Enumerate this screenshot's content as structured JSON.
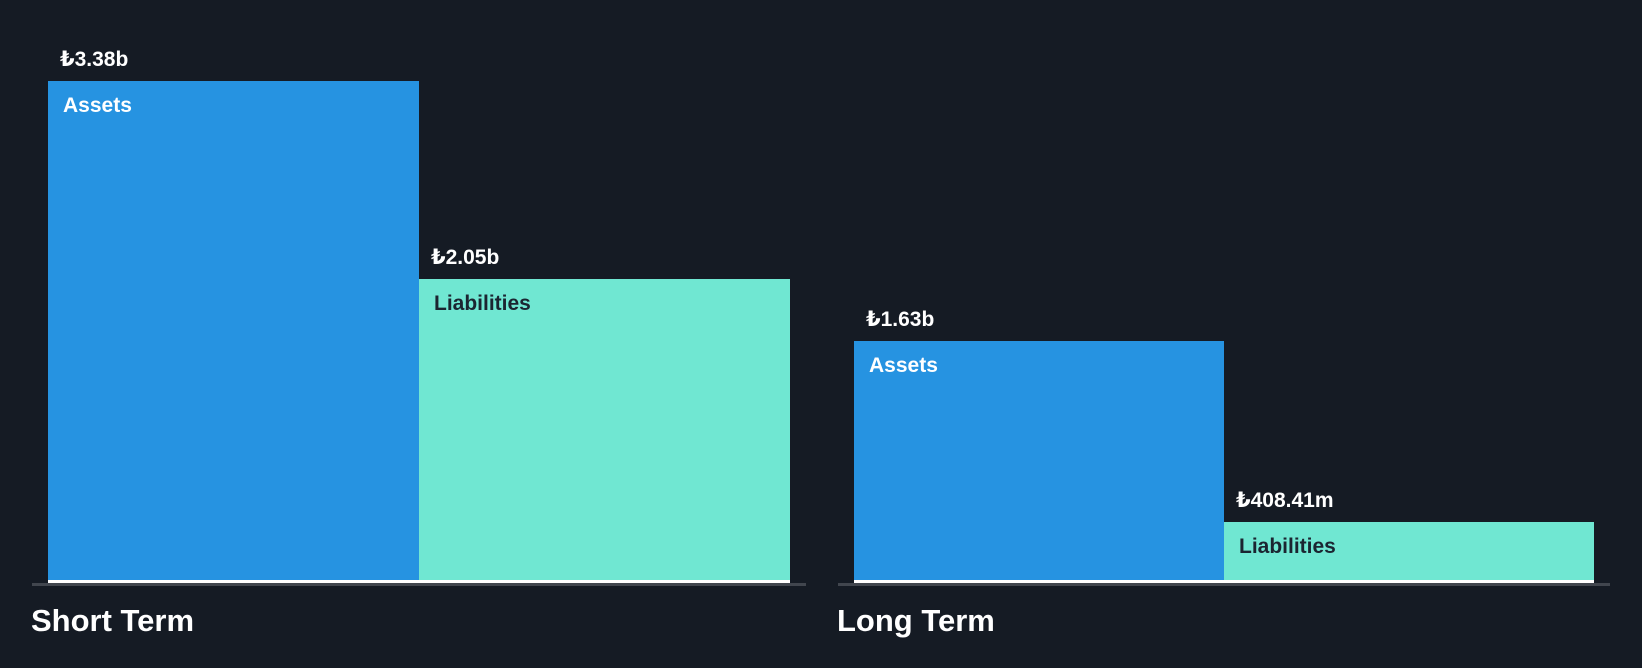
{
  "chart_data": {
    "type": "bar",
    "title": "",
    "currency_symbol": "₺",
    "ylim": [
      0,
      3.38
    ],
    "grid": false,
    "legend": "none",
    "value_axis_visible": false,
    "groups": [
      {
        "label": "Short Term",
        "bars": [
          {
            "category": "Assets",
            "display_value": "₺3.38b",
            "value_billions": 3.38
          },
          {
            "category": "Liabilities",
            "display_value": "₺2.05b",
            "value_billions": 2.05
          }
        ]
      },
      {
        "label": "Long Term",
        "bars": [
          {
            "category": "Assets",
            "display_value": "₺1.63b",
            "value_billions": 1.63
          },
          {
            "category": "Liabilities",
            "display_value": "₺408.41m",
            "value_billions": 0.40841
          }
        ]
      }
    ],
    "colors": {
      "assets_bar": "#2693e1",
      "liabilities_bar": "#70e7d2",
      "bar_bottom_edge": "#ffffff",
      "axis_line": "#41464e",
      "background": "#151b24",
      "value_label_text": "#ffffff",
      "assets_label_text": "#ffffff",
      "liabilities_label_text": "#1b2531",
      "group_label_text": "#ffffff"
    }
  }
}
